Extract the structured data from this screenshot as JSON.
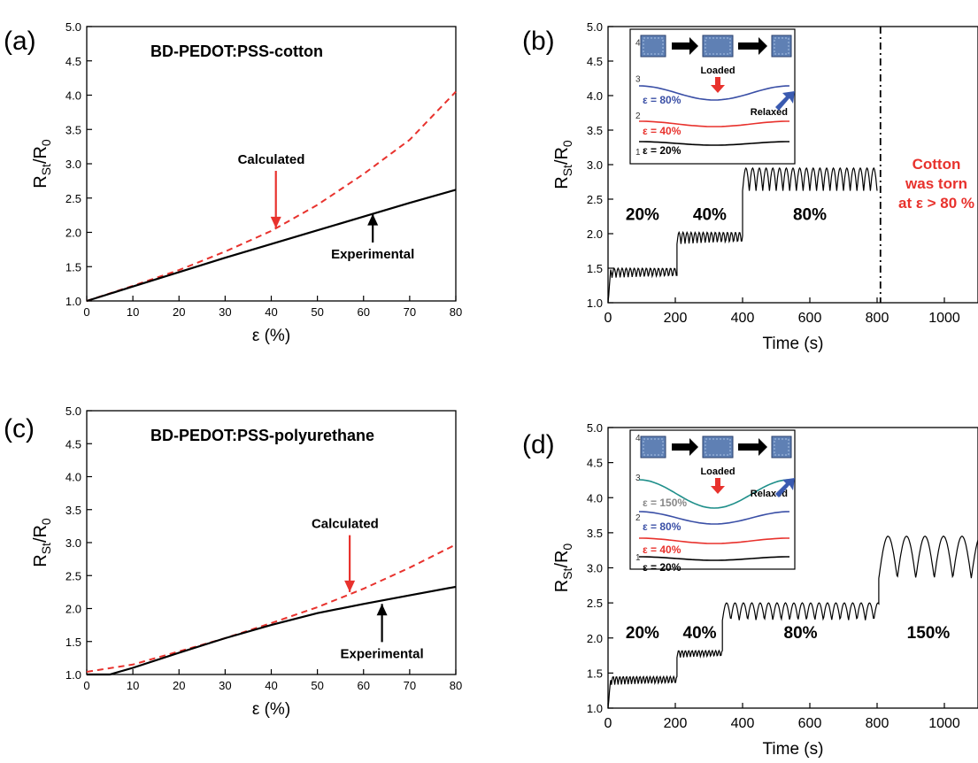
{
  "chart_data": [
    {
      "panel_label": "(a)",
      "type": "line",
      "title": "BD-PEDOT:PSS-cotton",
      "xlabel": "ε (%)",
      "ylabel": "RSt/R0",
      "xlim": [
        0,
        80
      ],
      "ylim": [
        1.0,
        5.0
      ],
      "xticks": [
        "0",
        "10",
        "20",
        "30",
        "40",
        "50",
        "60",
        "70",
        "80"
      ],
      "yticks": [
        "1.0",
        "1.5",
        "2.0",
        "2.5",
        "3.0",
        "3.5",
        "4.0",
        "4.5",
        "5.0"
      ],
      "series": [
        {
          "name": "Calculated",
          "color": "#e8322d",
          "dash": true,
          "x": [
            0,
            10,
            20,
            30,
            40,
            50,
            60,
            70,
            80
          ],
          "y": [
            1.0,
            1.22,
            1.45,
            1.72,
            2.02,
            2.4,
            2.85,
            3.35,
            4.05
          ]
        },
        {
          "name": "Experimental",
          "color": "#000000",
          "dash": false,
          "x": [
            0,
            10,
            20,
            30,
            40,
            50,
            60,
            70,
            80
          ],
          "y": [
            1.0,
            1.21,
            1.42,
            1.63,
            1.83,
            2.03,
            2.23,
            2.43,
            2.62
          ]
        }
      ],
      "annotations": [
        {
          "text": "Calculated",
          "color": "#000000",
          "x": 40,
          "y": 3.0,
          "arrow_to": [
            41,
            2.06
          ],
          "arrow_color": "#e8322d"
        },
        {
          "text": "Experimental",
          "color": "#000000",
          "x": 62,
          "y": 1.62,
          "arrow_to": [
            62,
            2.27
          ],
          "arrow_color": "#000000",
          "arrow_up": true
        }
      ]
    },
    {
      "panel_label": "(b)",
      "type": "line",
      "xlabel": "Time (s)",
      "ylabel": "RSt/R0",
      "xlim": [
        0,
        1100
      ],
      "ylim": [
        1.0,
        5.0
      ],
      "xticks": [
        "0",
        "200",
        "400",
        "600",
        "800",
        "1000"
      ],
      "yticks": [
        "1.0",
        "1.5",
        "2.0",
        "2.5",
        "3.0",
        "3.5",
        "4.0",
        "4.5",
        "5.0"
      ],
      "stages": [
        {
          "label": "20%",
          "t0": 0,
          "t1": 205,
          "base": 1.36,
          "top": 1.5,
          "period": 12
        },
        {
          "label": "40%",
          "t0": 205,
          "t1": 400,
          "base": 1.85,
          "top": 2.02,
          "period": 12
        },
        {
          "label": "80%",
          "t0": 400,
          "t1": 800,
          "base": 2.62,
          "top": 2.95,
          "period": 20
        }
      ],
      "stage_label_y": 2.2,
      "dashline_x": 810,
      "note_lines": [
        "Cotton",
        "was torn",
        "at ε > 80 %"
      ],
      "note_color": "#e8322d",
      "inset": {
        "labels": [
          "ε = 80%",
          "ε = 40%",
          "ε = 20%"
        ],
        "label_colors": [
          "#3a4fa6",
          "#e8322d",
          "#000000"
        ],
        "loaded": "Loaded",
        "relaxed": "Relaxed",
        "yticks": [
          "1",
          "2",
          "3",
          "4"
        ]
      }
    },
    {
      "panel_label": "(c)",
      "type": "line",
      "title": "BD-PEDOT:PSS-polyurethane",
      "xlabel": "ε (%)",
      "ylabel": "RSt/R0",
      "xlim": [
        0,
        80
      ],
      "ylim": [
        1.0,
        5.0
      ],
      "xticks": [
        "0",
        "10",
        "20",
        "30",
        "40",
        "50",
        "60",
        "70",
        "80"
      ],
      "yticks": [
        "1.0",
        "1.5",
        "2.0",
        "2.5",
        "3.0",
        "3.5",
        "4.0",
        "4.5",
        "5.0"
      ],
      "series": [
        {
          "name": "Calculated",
          "color": "#e8322d",
          "dash": true,
          "x": [
            0,
            10,
            20,
            30,
            40,
            50,
            60,
            70,
            80
          ],
          "y": [
            1.04,
            1.15,
            1.35,
            1.55,
            1.78,
            2.02,
            2.3,
            2.62,
            2.97
          ]
        },
        {
          "name": "Experimental",
          "color": "#000000",
          "dash": false,
          "x": [
            0,
            5,
            10,
            20,
            30,
            40,
            50,
            60,
            70,
            80
          ],
          "y": [
            1.0,
            1.0,
            1.1,
            1.33,
            1.55,
            1.75,
            1.93,
            2.07,
            2.2,
            2.33
          ]
        }
      ],
      "annotations": [
        {
          "text": "Calculated",
          "color": "#000000",
          "x": 56,
          "y": 3.22,
          "arrow_to": [
            57,
            2.25
          ],
          "arrow_color": "#e8322d"
        },
        {
          "text": "Experimental",
          "color": "#000000",
          "x": 64,
          "y": 1.25,
          "arrow_to": [
            64,
            2.07
          ],
          "arrow_color": "#000000",
          "arrow_up": true
        }
      ]
    },
    {
      "panel_label": "(d)",
      "type": "line",
      "xlabel": "Time (s)",
      "ylabel": "RSt/R0",
      "xlim": [
        0,
        1100
      ],
      "ylim": [
        1.0,
        5.0
      ],
      "xticks": [
        "0",
        "200",
        "400",
        "600",
        "800",
        "1000"
      ],
      "yticks": [
        "1.0",
        "1.5",
        "2.0",
        "2.5",
        "3.0",
        "3.5",
        "4.0",
        "4.5",
        "5.0"
      ],
      "stages": [
        {
          "label": "20%",
          "t0": 0,
          "t1": 205,
          "base": 1.33,
          "top": 1.45,
          "period": 10
        },
        {
          "label": "40%",
          "t0": 205,
          "t1": 340,
          "base": 1.72,
          "top": 1.82,
          "period": 10
        },
        {
          "label": "80%",
          "t0": 340,
          "t1": 805,
          "base": 2.25,
          "top": 2.5,
          "period": 25
        },
        {
          "label": "150%",
          "t0": 805,
          "t1": 1100,
          "base": 2.85,
          "top": 3.45,
          "period": 55
        }
      ],
      "stage_label_y": 2.0,
      "inset": {
        "labels": [
          "ε = 150%",
          "ε = 80%",
          "ε = 40%",
          "ε = 20%"
        ],
        "label_colors": [
          "#888888",
          "#3a4fa6",
          "#e8322d",
          "#000000"
        ],
        "loaded": "Loaded",
        "relaxed": "Relaxed",
        "yticks": [
          "1",
          "2",
          "3",
          "4"
        ]
      }
    }
  ]
}
